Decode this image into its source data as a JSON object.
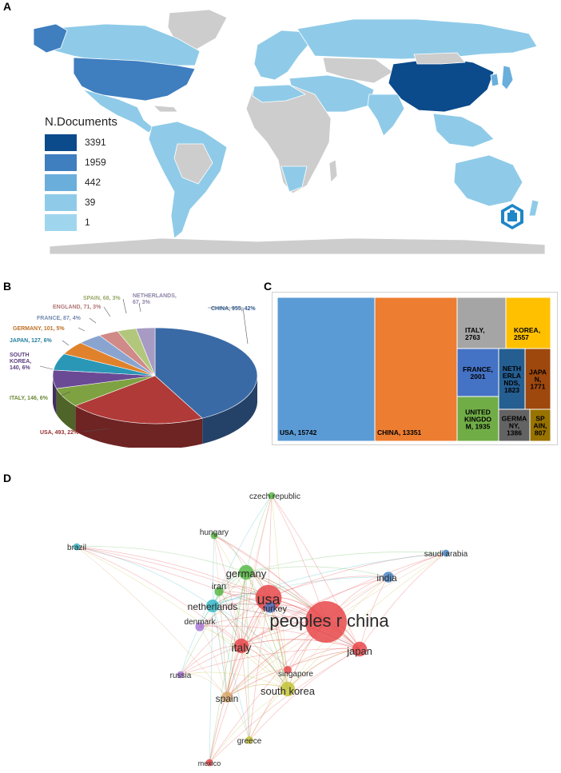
{
  "panels": {
    "a": "A",
    "b": "B",
    "c": "C",
    "d": "D"
  },
  "map": {
    "legend_title": "N.Documents",
    "legend": [
      {
        "label": "3391",
        "color": "#0b4a8b"
      },
      {
        "label": "1959",
        "color": "#3f7ebf"
      },
      {
        "label": "442",
        "color": "#6aaedc"
      },
      {
        "label": "39",
        "color": "#8fcbe8"
      },
      {
        "label": "1",
        "color": "#9fd6ee"
      }
    ],
    "colors": {
      "no_data": "#cdcdcd",
      "ocean": "#ffffff"
    }
  },
  "chart_data": [
    {
      "type": "pie",
      "panel": "B",
      "slices": [
        {
          "label": "CHINA, 955, 42%",
          "name": "CHINA",
          "value": 955,
          "percent": 42,
          "color": "#3a6aa6"
        },
        {
          "label": "USA, 493, 22%",
          "name": "USA",
          "value": 493,
          "percent": 22,
          "color": "#b03a38"
        },
        {
          "label": "ITALY, 146, 6%",
          "name": "ITALY",
          "value": 146,
          "percent": 6,
          "color": "#7ea241"
        },
        {
          "label": "SOUTH KOREA, 140, 6%",
          "name": "SOUTH KOREA",
          "value": 140,
          "percent": 6,
          "color": "#6a4a95"
        },
        {
          "label": "JAPAN, 127, 6%",
          "name": "JAPAN",
          "value": 127,
          "percent": 6,
          "color": "#2a97b7"
        },
        {
          "label": "GERMANY, 101, 5%",
          "name": "GERMANY",
          "value": 101,
          "percent": 5,
          "color": "#e0822c"
        },
        {
          "label": "FRANCE, 87, 4%",
          "name": "FRANCE",
          "value": 87,
          "percent": 4,
          "color": "#8aa4d0"
        },
        {
          "label": "ENGLAND, 71, 3%",
          "name": "ENGLAND",
          "value": 71,
          "percent": 3,
          "color": "#d08a88"
        },
        {
          "label": "SPAIN, 68, 3%",
          "name": "SPAIN",
          "value": 68,
          "percent": 3,
          "color": "#b2c77c"
        },
        {
          "label": "NETHERLANDS, 67, 3%",
          "name": "NETHERLANDS",
          "value": 67,
          "percent": 3,
          "color": "#a79bc4"
        }
      ]
    },
    {
      "type": "treemap",
      "panel": "C",
      "items": [
        {
          "name": "USA, 15742",
          "value": 15742,
          "color": "#5b9bd5"
        },
        {
          "name": "CHINA, 13351",
          "value": 13351,
          "color": "#ed7d31"
        },
        {
          "name": "ITALY, 2763",
          "value": 2763,
          "color": "#a5a5a5"
        },
        {
          "name": "KOREA, 2557",
          "value": 2557,
          "color": "#ffc000"
        },
        {
          "name": "FRANCE, 2001",
          "value": 2001,
          "color": "#4472c4"
        },
        {
          "name": "NETH ERLA NDS, 1823",
          "value": 1823,
          "color": "#255e91"
        },
        {
          "name": "JAPA N, 1771",
          "value": 1771,
          "color": "#9e480e"
        },
        {
          "name": "UNITED KINGDO M, 1935",
          "value": 1935,
          "color": "#70ad47"
        },
        {
          "name": "GERMA NY, 1386",
          "value": 1386,
          "color": "#636363"
        },
        {
          "name": "SP AIN, 807",
          "value": 807,
          "color": "#997300"
        }
      ]
    },
    {
      "type": "network",
      "panel": "D",
      "nodes": [
        {
          "label": "peoples r china",
          "weight": 10,
          "color": "#e8484a"
        },
        {
          "label": "usa",
          "weight": 6,
          "color": "#e8484a"
        },
        {
          "label": "italy",
          "weight": 3,
          "color": "#e8484a"
        },
        {
          "label": "japan",
          "weight": 3,
          "color": "#e8484a"
        },
        {
          "label": "south korea",
          "weight": 3,
          "color": "#c4c43c"
        },
        {
          "label": "germany",
          "weight": 3,
          "color": "#58b848"
        },
        {
          "label": "netherlands",
          "weight": 2.5,
          "color": "#38b8c8"
        },
        {
          "label": "turkey",
          "weight": 2,
          "color": "#4a78c8"
        },
        {
          "label": "india",
          "weight": 2,
          "color": "#4a88c8"
        },
        {
          "label": "spain",
          "weight": 2,
          "color": "#d8a870"
        },
        {
          "label": "iran",
          "weight": 1.5,
          "color": "#58b848"
        },
        {
          "label": "denmark",
          "weight": 1.5,
          "color": "#a878d8"
        },
        {
          "label": "singapore",
          "weight": 1.2,
          "color": "#e8484a"
        },
        {
          "label": "greece",
          "weight": 1.2,
          "color": "#c4c43c"
        },
        {
          "label": "hungary",
          "weight": 1,
          "color": "#58b848"
        },
        {
          "label": "czech republic",
          "weight": 1,
          "color": "#58b848"
        },
        {
          "label": "brazil",
          "weight": 1,
          "color": "#38b8c8"
        },
        {
          "label": "saudi arabia",
          "weight": 1,
          "color": "#4a88c8"
        },
        {
          "label": "russia",
          "weight": 1,
          "color": "#a878d8"
        },
        {
          "label": "mexico",
          "weight": 1,
          "color": "#e8484a"
        }
      ]
    }
  ]
}
